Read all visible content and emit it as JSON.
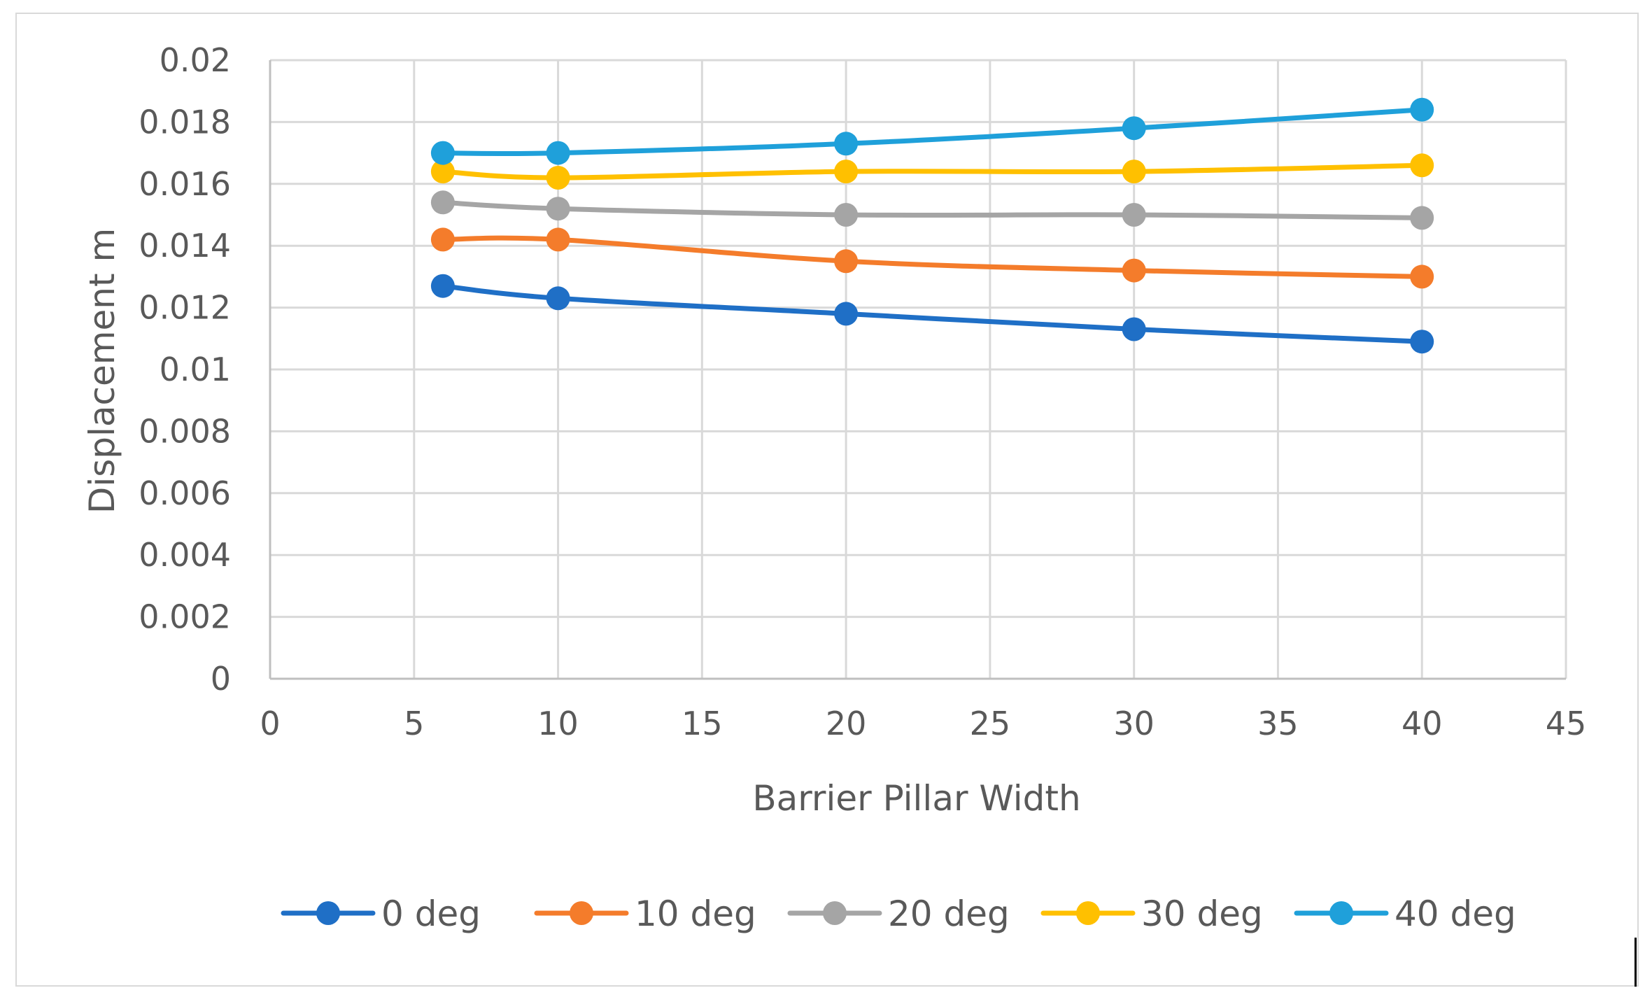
{
  "chart_data": {
    "type": "line",
    "title": "",
    "xlabel": "Barrier Pillar Width",
    "ylabel": "Displacement m",
    "xlim": [
      0,
      45
    ],
    "ylim": [
      0,
      0.02
    ],
    "x_ticks": [
      "0",
      "5",
      "10",
      "15",
      "20",
      "25",
      "30",
      "35",
      "40",
      "45"
    ],
    "y_ticks": [
      "0",
      "0.002",
      "0.004",
      "0.006",
      "0.008",
      "0.01",
      "0.012",
      "0.014",
      "0.016",
      "0.018",
      "0.02"
    ],
    "x_tick_values": [
      0,
      5,
      10,
      15,
      20,
      25,
      30,
      35,
      40,
      45
    ],
    "y_tick_values": [
      0,
      0.002,
      0.004,
      0.006,
      0.008,
      0.01,
      0.012,
      0.014,
      0.016,
      0.018,
      0.02
    ],
    "grid": true,
    "legend_position": "bottom",
    "x": [
      6,
      10,
      20,
      30,
      40
    ],
    "series": [
      {
        "name": "0 deg",
        "color": "#1F6FC6",
        "values": [
          0.0127,
          0.0123,
          0.0118,
          0.0113,
          0.0109
        ]
      },
      {
        "name": "10 deg",
        "color": "#F47C2B",
        "values": [
          0.0142,
          0.0142,
          0.0135,
          0.0132,
          0.013
        ]
      },
      {
        "name": "20 deg",
        "color": "#A5A5A5",
        "values": [
          0.0154,
          0.0152,
          0.015,
          0.015,
          0.0149
        ]
      },
      {
        "name": "30 deg",
        "color": "#FFC000",
        "values": [
          0.0164,
          0.0162,
          0.0164,
          0.0164,
          0.0166
        ]
      },
      {
        "name": "40 deg",
        "color": "#1FA0DA",
        "values": [
          0.017,
          0.017,
          0.0173,
          0.0178,
          0.0184
        ]
      }
    ]
  }
}
